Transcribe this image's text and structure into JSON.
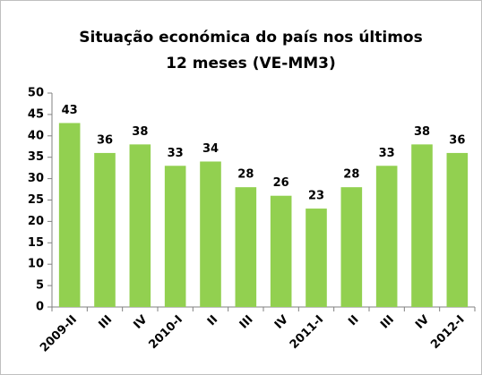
{
  "chart_data": {
    "type": "bar",
    "title": "Situação económica do país nos últimos 12 meses (VE-MM3)",
    "categories": [
      "2009-II",
      "III",
      "IV",
      "2010-I",
      "II",
      "III",
      "IV",
      "2011-I",
      "II",
      "III",
      "IV",
      "2012-I"
    ],
    "values": [
      43,
      36,
      38,
      33,
      34,
      28,
      26,
      23,
      28,
      33,
      38,
      36
    ],
    "color": "#92d050",
    "ylim": [
      0,
      50
    ],
    "yticks": [
      0,
      5,
      10,
      15,
      20,
      25,
      30,
      35,
      40,
      45,
      50
    ],
    "grid": false
  }
}
